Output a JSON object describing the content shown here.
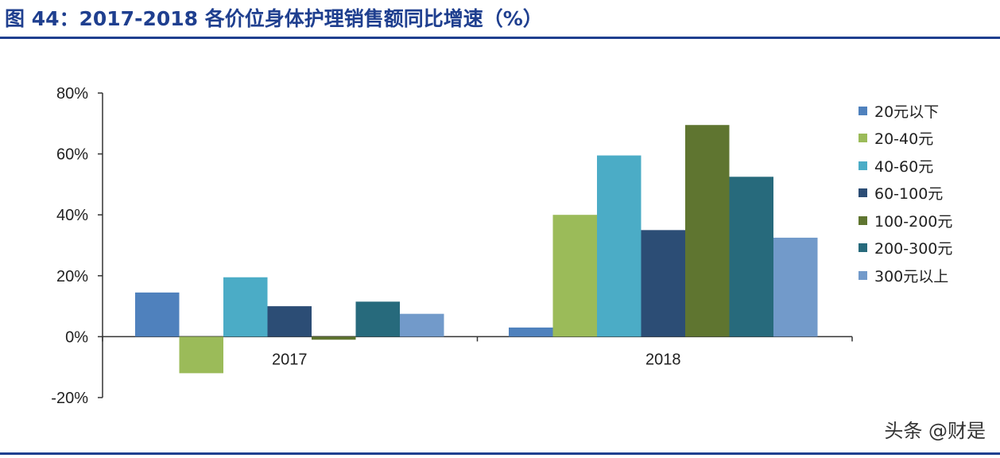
{
  "title": "图 44：2017-2018 各价位身体护理销售额同比增速（%）",
  "watermark": "头条 @财是",
  "chart_data": {
    "type": "bar",
    "categories": [
      "2017",
      "2018"
    ],
    "ylim": [
      -20,
      80
    ],
    "yticks": [
      -20,
      0,
      20,
      40,
      60,
      80
    ],
    "ytick_labels": [
      "-20%",
      "0%",
      "20%",
      "40%",
      "60%",
      "80%"
    ],
    "legend_position": "right",
    "grid": false,
    "series": [
      {
        "name": "20元以下",
        "color": "#4f81bd",
        "values": [
          14.5,
          3
        ]
      },
      {
        "name": "20-40元",
        "color": "#9bbb59",
        "values": [
          -12,
          40
        ]
      },
      {
        "name": "40-60元",
        "color": "#4bacc6",
        "values": [
          19.5,
          59.5
        ]
      },
      {
        "name": "60-100元",
        "color": "#2c4d75",
        "values": [
          10,
          35
        ]
      },
      {
        "name": "100-200元",
        "color": "#5f7530",
        "values": [
          -1,
          69.5
        ]
      },
      {
        "name": "200-300元",
        "color": "#276a7c",
        "values": [
          11.5,
          52.5
        ]
      },
      {
        "name": "300元以上",
        "color": "#729aca",
        "values": [
          7.5,
          32.5
        ]
      }
    ]
  }
}
